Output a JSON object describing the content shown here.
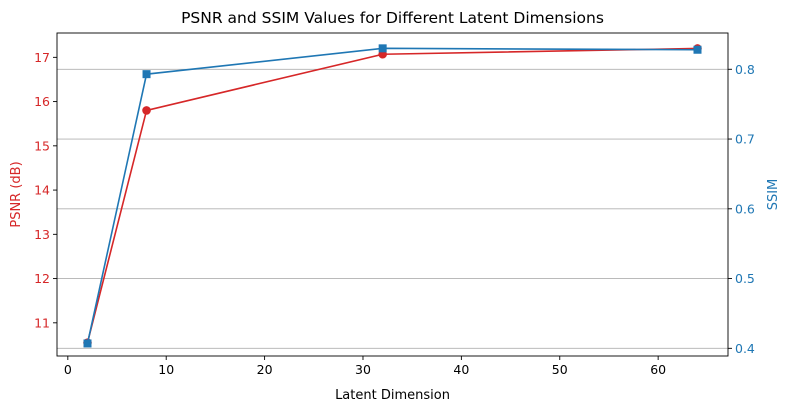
{
  "chart_data": {
    "type": "line",
    "title": "PSNR and SSIM Values for Different Latent Dimensions",
    "xlabel": "Latent Dimension",
    "ylabel_left": "PSNR (dB)",
    "ylabel_right": "SSIM",
    "xlim": [
      -1.1,
      67.1
    ],
    "ylim_left": [
      10.25,
      17.55
    ],
    "ylim_right": [
      0.389,
      0.852
    ],
    "x_ticks": [
      0,
      10,
      20,
      30,
      40,
      50,
      60
    ],
    "y_left_ticks": [
      11,
      12,
      13,
      14,
      15,
      16,
      17
    ],
    "y_right_ticks": [
      0.4,
      0.5,
      0.6,
      0.7,
      0.8
    ],
    "grid": "horizontal-right-axis",
    "series": [
      {
        "axis": "left",
        "color": "#d62728",
        "marker": "circle",
        "x": [
          2,
          8,
          32,
          64
        ],
        "values": [
          10.55,
          15.8,
          17.07,
          17.2
        ]
      },
      {
        "axis": "right",
        "color": "#1f77b4",
        "marker": "square",
        "x": [
          2,
          8,
          32,
          64
        ],
        "values": [
          0.407,
          0.793,
          0.83,
          0.828
        ]
      }
    ]
  }
}
